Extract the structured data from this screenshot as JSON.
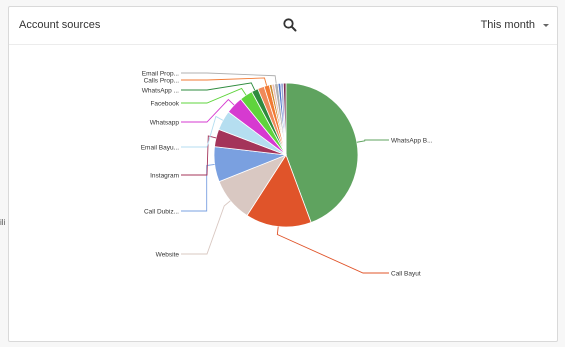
{
  "backdrop": {
    "edge_text": "ili"
  },
  "card": {
    "title": "Account sources",
    "search_icon": "search-icon",
    "period": "This month",
    "caret_icon": "chevron-down-icon"
  },
  "chart_data": {
    "type": "pie",
    "title": "",
    "slices": [
      {
        "label": "WhatsApp B...",
        "value": 45.0,
        "color": "#5fa35f"
      },
      {
        "label": "Call Bayut",
        "value": 15.0,
        "color": "#e0542a"
      },
      {
        "label": "Website",
        "value": 10.0,
        "color": "#d9c8c2"
      },
      {
        "label": "Call Dubiz...",
        "value": 8.0,
        "color": "#7aa0e0"
      },
      {
        "label": "Instagram",
        "value": 4.0,
        "color": "#a4345a"
      },
      {
        "label": "Email Bayu...",
        "value": 4.5,
        "color": "#b5def0"
      },
      {
        "label": "Whatsapp",
        "value": 4.0,
        "color": "#d63ad0"
      },
      {
        "label": "Facebook",
        "value": 3.0,
        "color": "#5fd43c"
      },
      {
        "label": "WhatsApp ...",
        "value": 1.5,
        "color": "#2e8b3e"
      },
      {
        "label": "",
        "value": 1.5,
        "color": "#f08a5a"
      },
      {
        "label": "Calls Prop...",
        "value": 1.2,
        "color": "#f27a33"
      },
      {
        "label": "",
        "value": 0.6,
        "color": "#c98a30"
      },
      {
        "label": "",
        "value": 0.6,
        "color": "#e8c0b4"
      },
      {
        "label": "Email Prop...",
        "value": 0.8,
        "color": "#b0b0b0"
      },
      {
        "label": "",
        "value": 0.6,
        "color": "#4e73c9"
      },
      {
        "label": "",
        "value": 0.6,
        "color": "#9aa8d8"
      },
      {
        "label": "",
        "value": 0.6,
        "color": "#7a2e52"
      }
    ]
  }
}
